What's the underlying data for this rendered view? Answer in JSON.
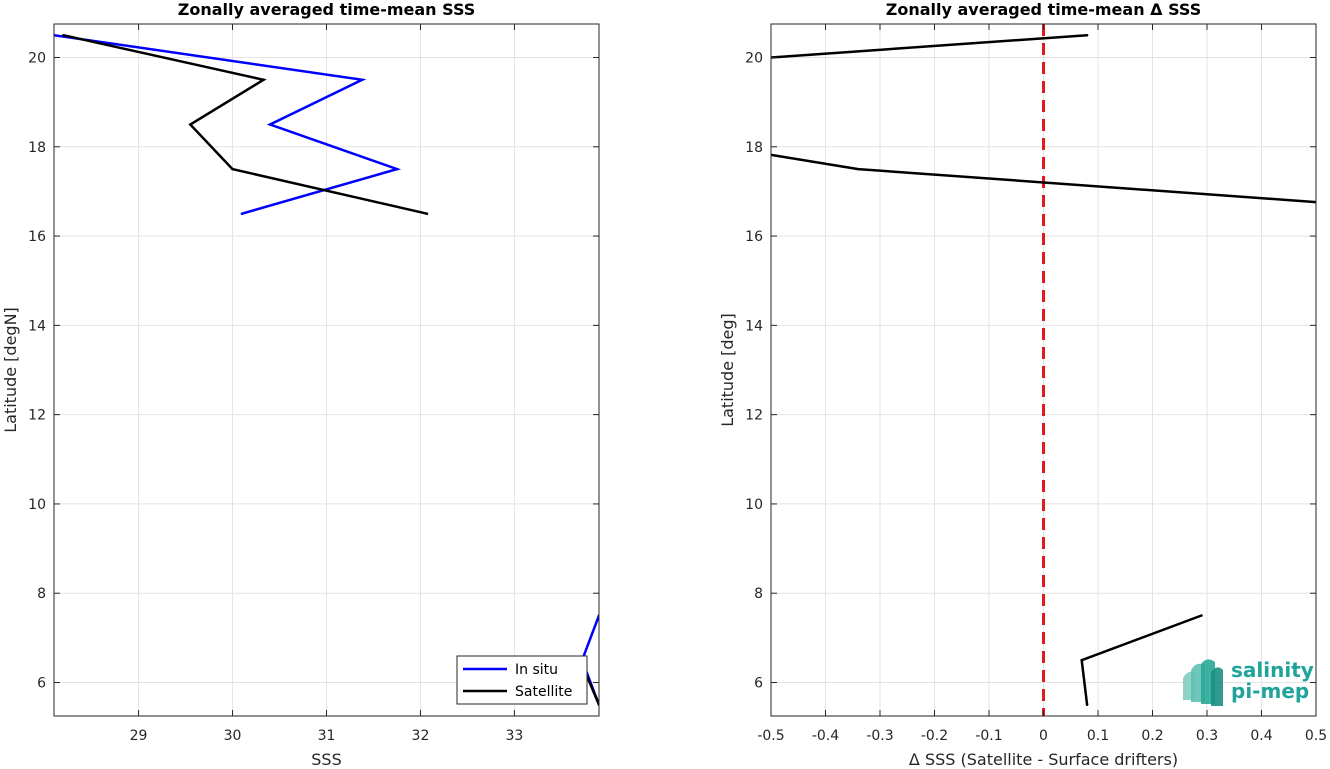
{
  "chart_data": [
    {
      "type": "line",
      "title": "Zonally averaged time-mean SSS",
      "xlabel": "SSS",
      "ylabel": "Latitude [degN]",
      "xlim": [
        28.1,
        33.9
      ],
      "ylim": [
        5.25,
        20.75
      ],
      "xticks": [
        29,
        30,
        31,
        32,
        33
      ],
      "yticks": [
        6,
        8,
        10,
        12,
        14,
        16,
        18,
        20
      ],
      "grid": true,
      "legend": "bottom-right",
      "series": [
        {
          "name": "In situ",
          "color": "#0000ff",
          "segments": [
            [
              [
                28.1,
                20.5
              ],
              [
                31.38,
                19.5
              ],
              [
                30.4,
                18.5
              ],
              [
                31.75,
                17.5
              ],
              [
                30.1,
                16.5
              ]
            ],
            [
              [
                33.9,
                7.5
              ],
              [
                33.72,
                6.5
              ],
              [
                33.9,
                5.5
              ]
            ]
          ]
        },
        {
          "name": "Satellite",
          "color": "#000000",
          "segments": [
            [
              [
                28.2,
                20.5
              ],
              [
                30.33,
                19.5
              ],
              [
                29.55,
                18.5
              ],
              [
                30.0,
                17.5
              ],
              [
                32.07,
                16.5
              ]
            ],
            [
              [
                33.7,
                6.5
              ],
              [
                33.9,
                5.5
              ]
            ]
          ]
        }
      ]
    },
    {
      "type": "line",
      "title": "Zonally averaged time-mean Δ SSS",
      "xlabel": "Δ SSS (Satellite - Surface drifters)",
      "ylabel": "Latitude [deg]",
      "xlim": [
        -0.5,
        0.5
      ],
      "ylim": [
        5.25,
        20.75
      ],
      "xticks": [
        -0.5,
        -0.4,
        -0.3,
        -0.2,
        -0.1,
        0,
        0.1,
        0.2,
        0.3,
        0.4,
        0.5
      ],
      "xticklabels": [
        "-0.5",
        "-0.4",
        "-0.3",
        "-0.2",
        "-0.1",
        "0",
        "0.1",
        "0.2",
        "0.3",
        "0.4",
        "0.5"
      ],
      "yticks": [
        6,
        8,
        10,
        12,
        14,
        16,
        18,
        20
      ],
      "grid": true,
      "reference_line": {
        "x": 0,
        "color": "#e31a1c",
        "style": "dashed"
      },
      "series": [
        {
          "color": "#000000",
          "segments": [
            [
              [
                -0.5,
                20.0
              ],
              [
                0.08,
                20.5
              ]
            ],
            [
              [
                -0.5,
                17.82
              ],
              [
                -0.34,
                17.5
              ],
              [
                0.5,
                16.76
              ]
            ],
            [
              [
                0.29,
                7.5
              ],
              [
                0.07,
                6.5
              ],
              [
                0.08,
                5.5
              ]
            ]
          ]
        }
      ]
    }
  ],
  "logo": {
    "line1": "salinity",
    "line2": "pi-mep",
    "color": "#1fa39a"
  }
}
